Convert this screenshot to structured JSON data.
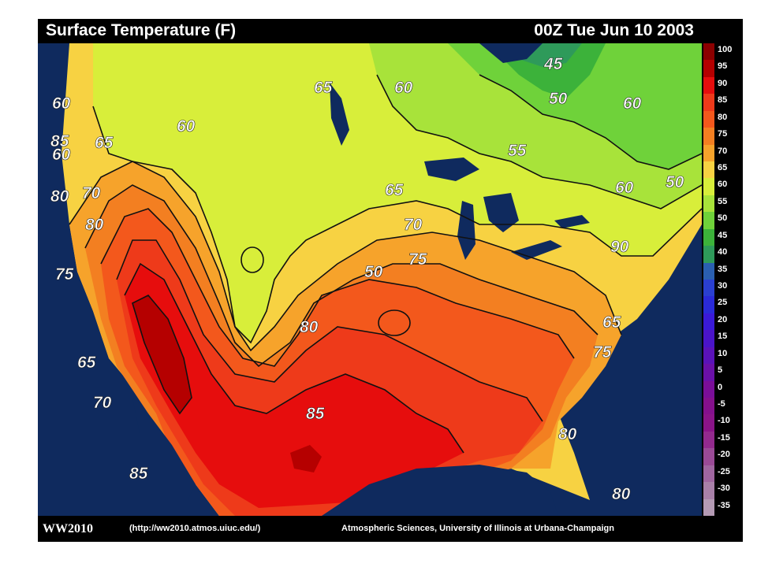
{
  "title": "Surface Temperature (F)",
  "timestamp": "00Z Tue Jun 10 2003",
  "legend": [
    {
      "label": "100",
      "color": "#8b0000"
    },
    {
      "label": "95",
      "color": "#b50000"
    },
    {
      "label": "90",
      "color": "#e60d0d"
    },
    {
      "label": "85",
      "color": "#ee3a1a"
    },
    {
      "label": "80",
      "color": "#f3581c"
    },
    {
      "label": "75",
      "color": "#f37f21"
    },
    {
      "label": "70",
      "color": "#f6a32b"
    },
    {
      "label": "65",
      "color": "#f7d242"
    },
    {
      "label": "60",
      "color": "#d8ee3a"
    },
    {
      "label": "55",
      "color": "#a8e33a"
    },
    {
      "label": "50",
      "color": "#6fd23a"
    },
    {
      "label": "45",
      "color": "#3cb23a"
    },
    {
      "label": "40",
      "color": "#2e9a5a"
    },
    {
      "label": "35",
      "color": "#2a5fb0"
    },
    {
      "label": "30",
      "color": "#2a3fd0"
    },
    {
      "label": "25",
      "color": "#2a2ad8"
    },
    {
      "label": "20",
      "color": "#3a1ad8"
    },
    {
      "label": "15",
      "color": "#4a14c8"
    },
    {
      "label": "10",
      "color": "#5a12b8"
    },
    {
      "label": "5",
      "color": "#6a10a8"
    },
    {
      "label": "0",
      "color": "#7a0e98"
    },
    {
      "label": "-5",
      "color": "#84108c"
    },
    {
      "label": "-10",
      "color": "#8a1488"
    },
    {
      "label": "-15",
      "color": "#932a8e"
    },
    {
      "label": "-20",
      "color": "#9a4a96"
    },
    {
      "label": "-25",
      "color": "#a066a0"
    },
    {
      "label": "-30",
      "color": "#a880a8"
    },
    {
      "label": "-35",
      "color": "#b49ab4"
    }
  ],
  "contour_labels": [
    "60",
    "60",
    "65",
    "60",
    "70",
    "80",
    "75",
    "65",
    "70",
    "85",
    "60",
    "65",
    "60",
    "45",
    "50",
    "50",
    "55",
    "65",
    "70",
    "75",
    "60",
    "50",
    "80",
    "85",
    "90",
    "65",
    "75",
    "80",
    "80",
    "85",
    "80"
  ],
  "footer": {
    "brand": "WW2010",
    "url": "(http://ww2010.atmos.uiuc.edu/)",
    "credit": "Atmospheric Sciences, University of Illinois at Urbana-Champaign"
  },
  "colors": {
    "ocean": "#0f2a5e",
    "background": "#000000",
    "contour_line": "#111111"
  }
}
